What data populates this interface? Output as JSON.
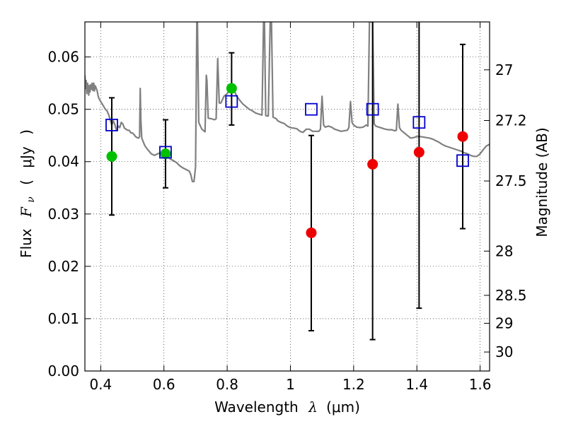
{
  "chart_data": {
    "type": "scatter",
    "xlabel": {
      "text": "Wavelength",
      "symbol": "λ",
      "unit": "(μm)"
    },
    "ylabel": {
      "text": "Flux",
      "symbol": "F",
      "subscript": "ν",
      "unit_open": "(",
      "unit": "μJy",
      "unit_close": ")"
    },
    "y2label": "Magnitude (AB)",
    "xlim": [
      0.35,
      1.63
    ],
    "ylim": [
      0.0,
      0.0667
    ],
    "grid": true,
    "x_ticks": [
      {
        "value": 0.4,
        "label": "0.4"
      },
      {
        "value": 0.6,
        "label": "0.6"
      },
      {
        "value": 0.8,
        "label": "0.8"
      },
      {
        "value": 1.0,
        "label": "1"
      },
      {
        "value": 1.2,
        "label": "1.2"
      },
      {
        "value": 1.4,
        "label": "1.4"
      },
      {
        "value": 1.6,
        "label": "1.6"
      }
    ],
    "y_ticks": [
      {
        "value": 0.0,
        "label": "0.00"
      },
      {
        "value": 0.01,
        "label": "0.01"
      },
      {
        "value": 0.02,
        "label": "0.02"
      },
      {
        "value": 0.03,
        "label": "0.03"
      },
      {
        "value": 0.04,
        "label": "0.04"
      },
      {
        "value": 0.05,
        "label": "0.05"
      },
      {
        "value": 0.06,
        "label": "0.06"
      }
    ],
    "y2_ticks": [
      {
        "value": 27.0,
        "label": "27"
      },
      {
        "value": 27.2,
        "label": "27.2"
      },
      {
        "value": 27.5,
        "label": "27.5"
      },
      {
        "value": 28.0,
        "label": "28"
      },
      {
        "value": 28.5,
        "label": "28.5"
      },
      {
        "value": 29.0,
        "label": "29"
      },
      {
        "value": 30.0,
        "label": "30"
      }
    ],
    "model_spectrum": {
      "color": "#808080",
      "points": [
        [
          0.35,
          0.0565
        ],
        [
          0.352,
          0.054
        ],
        [
          0.354,
          0.0555
        ],
        [
          0.356,
          0.053
        ],
        [
          0.358,
          0.055
        ],
        [
          0.36,
          0.0545
        ],
        [
          0.362,
          0.0527
        ],
        [
          0.364,
          0.0545
        ],
        [
          0.366,
          0.0533
        ],
        [
          0.368,
          0.0547
        ],
        [
          0.37,
          0.0538
        ],
        [
          0.373,
          0.055
        ],
        [
          0.375,
          0.0536
        ],
        [
          0.378,
          0.055
        ],
        [
          0.38,
          0.0535
        ],
        [
          0.383,
          0.0545
        ],
        [
          0.386,
          0.054
        ],
        [
          0.389,
          0.0535
        ],
        [
          0.392,
          0.0525
        ],
        [
          0.395,
          0.052
        ],
        [
          0.4,
          0.0515
        ],
        [
          0.405,
          0.051
        ],
        [
          0.41,
          0.0505
        ],
        [
          0.415,
          0.05
        ],
        [
          0.42,
          0.0497
        ],
        [
          0.425,
          0.049
        ],
        [
          0.43,
          0.048
        ],
        [
          0.435,
          0.047
        ],
        [
          0.44,
          0.0478
        ],
        [
          0.445,
          0.047
        ],
        [
          0.45,
          0.046
        ],
        [
          0.455,
          0.0468
        ],
        [
          0.46,
          0.0465
        ],
        [
          0.465,
          0.0475
        ],
        [
          0.47,
          0.0472
        ],
        [
          0.475,
          0.0464
        ],
        [
          0.48,
          0.0462
        ],
        [
          0.485,
          0.046
        ],
        [
          0.49,
          0.046
        ],
        [
          0.495,
          0.0455
        ],
        [
          0.5,
          0.0455
        ],
        [
          0.505,
          0.0452
        ],
        [
          0.51,
          0.0448
        ],
        [
          0.515,
          0.0446
        ],
        [
          0.52,
          0.0445
        ],
        [
          0.523,
          0.0448
        ],
        [
          0.525,
          0.054
        ],
        [
          0.527,
          0.048
        ],
        [
          0.53,
          0.0445
        ],
        [
          0.535,
          0.0437
        ],
        [
          0.54,
          0.043
        ],
        [
          0.545,
          0.0426
        ],
        [
          0.55,
          0.0422
        ],
        [
          0.56,
          0.0415
        ],
        [
          0.57,
          0.0412
        ],
        [
          0.58,
          0.0415
        ],
        [
          0.59,
          0.0417
        ],
        [
          0.6,
          0.0415
        ],
        [
          0.61,
          0.041
        ],
        [
          0.62,
          0.0405
        ],
        [
          0.63,
          0.0402
        ],
        [
          0.64,
          0.0398
        ],
        [
          0.65,
          0.0392
        ],
        [
          0.66,
          0.0388
        ],
        [
          0.67,
          0.0385
        ],
        [
          0.68,
          0.0382
        ],
        [
          0.685,
          0.0375
        ],
        [
          0.69,
          0.0362
        ],
        [
          0.695,
          0.0362
        ],
        [
          0.7,
          0.039
        ],
        [
          0.704,
          0.0667
        ],
        [
          0.706,
          0.0667
        ],
        [
          0.71,
          0.0475
        ],
        [
          0.72,
          0.0462
        ],
        [
          0.73,
          0.0457
        ],
        [
          0.734,
          0.0565
        ],
        [
          0.736,
          0.0555
        ],
        [
          0.74,
          0.0483
        ],
        [
          0.75,
          0.0482
        ],
        [
          0.76,
          0.048
        ],
        [
          0.765,
          0.0482
        ],
        [
          0.77,
          0.0597
        ],
        [
          0.775,
          0.0512
        ],
        [
          0.78,
          0.0512
        ],
        [
          0.79,
          0.0525
        ],
        [
          0.8,
          0.053
        ],
        [
          0.81,
          0.054
        ],
        [
          0.82,
          0.054
        ],
        [
          0.83,
          0.0525
        ],
        [
          0.84,
          0.0517
        ],
        [
          0.85,
          0.051
        ],
        [
          0.86,
          0.0505
        ],
        [
          0.87,
          0.05
        ],
        [
          0.88,
          0.0497
        ],
        [
          0.89,
          0.0493
        ],
        [
          0.9,
          0.0491
        ],
        [
          0.91,
          0.0489
        ],
        [
          0.915,
          0.0667
        ],
        [
          0.918,
          0.0667
        ],
        [
          0.922,
          0.0488
        ],
        [
          0.93,
          0.0487
        ],
        [
          0.936,
          0.0667
        ],
        [
          0.94,
          0.0667
        ],
        [
          0.945,
          0.0485
        ],
        [
          0.955,
          0.0482
        ],
        [
          0.96,
          0.0478
        ],
        [
          0.97,
          0.0475
        ],
        [
          0.98,
          0.0473
        ],
        [
          0.99,
          0.0468
        ],
        [
          1.0,
          0.0465
        ],
        [
          1.01,
          0.0464
        ],
        [
          1.02,
          0.0463
        ],
        [
          1.03,
          0.0458
        ],
        [
          1.04,
          0.0456
        ],
        [
          1.05,
          0.0462
        ],
        [
          1.06,
          0.0462
        ],
        [
          1.07,
          0.0458
        ],
        [
          1.08,
          0.0458
        ],
        [
          1.09,
          0.0458
        ],
        [
          1.095,
          0.0462
        ],
        [
          1.1,
          0.0525
        ],
        [
          1.105,
          0.047
        ],
        [
          1.11,
          0.0466
        ],
        [
          1.12,
          0.0468
        ],
        [
          1.13,
          0.0466
        ],
        [
          1.14,
          0.0462
        ],
        [
          1.15,
          0.046
        ],
        [
          1.16,
          0.0458
        ],
        [
          1.17,
          0.0459
        ],
        [
          1.18,
          0.046
        ],
        [
          1.185,
          0.0465
        ],
        [
          1.19,
          0.0515
        ],
        [
          1.195,
          0.0475
        ],
        [
          1.2,
          0.047
        ],
        [
          1.21,
          0.0466
        ],
        [
          1.22,
          0.0465
        ],
        [
          1.23,
          0.0466
        ],
        [
          1.24,
          0.047
        ],
        [
          1.245,
          0.0468
        ],
        [
          1.25,
          0.0667
        ],
        [
          1.26,
          0.0667
        ],
        [
          1.265,
          0.0472
        ],
        [
          1.27,
          0.0468
        ],
        [
          1.28,
          0.0466
        ],
        [
          1.29,
          0.0464
        ],
        [
          1.3,
          0.0462
        ],
        [
          1.31,
          0.0461
        ],
        [
          1.32,
          0.0461
        ],
        [
          1.33,
          0.0459
        ],
        [
          1.335,
          0.046
        ],
        [
          1.34,
          0.051
        ],
        [
          1.345,
          0.0465
        ],
        [
          1.35,
          0.046
        ],
        [
          1.36,
          0.0455
        ],
        [
          1.37,
          0.045
        ],
        [
          1.38,
          0.0445
        ],
        [
          1.39,
          0.0446
        ],
        [
          1.4,
          0.0448
        ],
        [
          1.41,
          0.0448
        ],
        [
          1.42,
          0.0447
        ],
        [
          1.43,
          0.0446
        ],
        [
          1.44,
          0.0445
        ],
        [
          1.45,
          0.0443
        ],
        [
          1.46,
          0.044
        ],
        [
          1.47,
          0.0437
        ],
        [
          1.48,
          0.0433
        ],
        [
          1.49,
          0.043
        ],
        [
          1.5,
          0.0428
        ],
        [
          1.51,
          0.0426
        ],
        [
          1.52,
          0.0424
        ],
        [
          1.53,
          0.0422
        ],
        [
          1.54,
          0.042
        ],
        [
          1.55,
          0.0417
        ],
        [
          1.56,
          0.0415
        ],
        [
          1.57,
          0.0412
        ],
        [
          1.58,
          0.041
        ],
        [
          1.59,
          0.041
        ],
        [
          1.6,
          0.0415
        ],
        [
          1.61,
          0.0423
        ],
        [
          1.62,
          0.043
        ],
        [
          1.63,
          0.0433
        ]
      ]
    },
    "series": [
      {
        "marker": "circle",
        "color": "#00c000",
        "points": [
          {
            "x": 0.435,
            "y": 0.041
          },
          {
            "x": 0.605,
            "y": 0.0415
          },
          {
            "x": 0.814,
            "y": 0.054
          }
        ]
      },
      {
        "marker": "circle",
        "color": "#ee0000",
        "points": [
          {
            "x": 1.066,
            "y": 0.0264
          },
          {
            "x": 1.26,
            "y": 0.0395
          },
          {
            "x": 1.407,
            "y": 0.0418
          },
          {
            "x": 1.545,
            "y": 0.0448
          }
        ]
      },
      {
        "marker": "square",
        "color": "#0000cc",
        "points": [
          {
            "x": 0.435,
            "y": 0.047
          },
          {
            "x": 0.605,
            "y": 0.0418
          },
          {
            "x": 0.814,
            "y": 0.0515
          },
          {
            "x": 1.066,
            "y": 0.05
          },
          {
            "x": 1.26,
            "y": 0.05
          },
          {
            "x": 1.407,
            "y": 0.0475
          },
          {
            "x": 1.545,
            "y": 0.0402
          }
        ]
      }
    ],
    "error_bars": [
      {
        "x": 0.435,
        "low": 0.0298,
        "high": 0.0522
      },
      {
        "x": 0.605,
        "low": 0.035,
        "high": 0.048
      },
      {
        "x": 0.814,
        "low": 0.047,
        "high": 0.0608
      },
      {
        "x": 1.066,
        "low": 0.0077,
        "high": 0.045
      },
      {
        "x": 1.26,
        "low": 0.006,
        "high": 0.0667
      },
      {
        "x": 1.407,
        "low": 0.012,
        "high": 0.0667
      },
      {
        "x": 1.545,
        "low": 0.0272,
        "high": 0.0624
      }
    ]
  }
}
